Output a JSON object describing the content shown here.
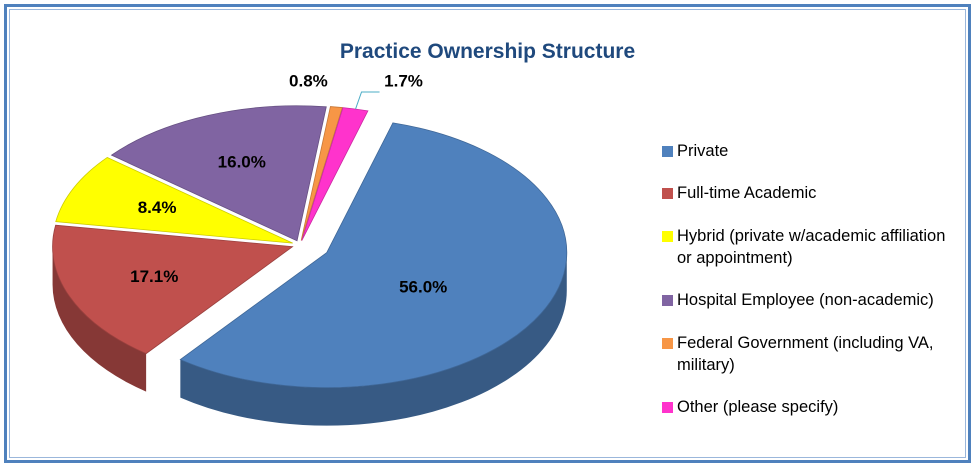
{
  "chart_data": {
    "type": "pie",
    "title": "Practice Ownership Structure",
    "categories": [
      "Private",
      "Full-time Academic",
      "Hybrid (private w/academic affiliation or appointment)",
      "Hospital Employee (non-academic)",
      "Federal Government (including VA, military)",
      "Other (please specify)"
    ],
    "values": [
      56.0,
      17.1,
      8.4,
      16.0,
      0.8,
      1.7
    ],
    "value_labels": [
      "56.0%",
      "17.1%",
      "8.4%",
      "16.0%",
      "0.8%",
      "1.7%"
    ],
    "colors": [
      "#4f81bd",
      "#c0504d",
      "#ffff00",
      "#8064a2",
      "#f79646",
      "#ff33cc"
    ],
    "legend": "right"
  }
}
